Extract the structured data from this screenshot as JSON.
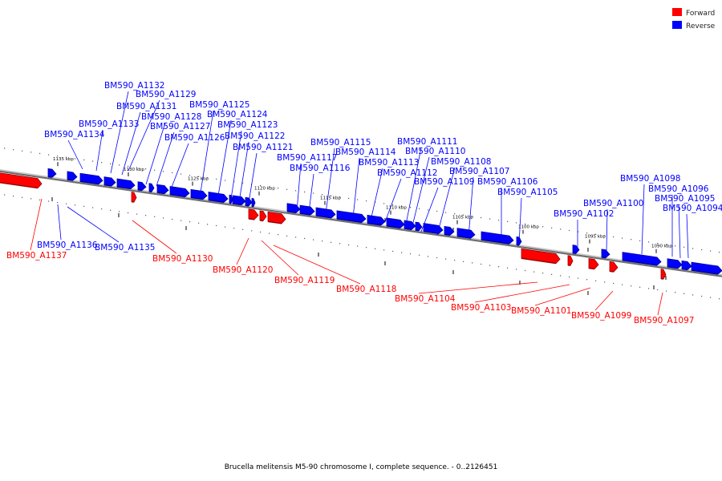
{
  "legend": [
    {
      "label": "Forward",
      "color": "#ff0000"
    },
    {
      "label": "Reverse",
      "color": "#0000ff"
    }
  ],
  "caption": "Brucella melitensis M5-90 chromosome I, complete sequence. - 0..2126451",
  "colors": {
    "forward": "#ff0000",
    "forward_dark": "#990000",
    "reverse": "#0000ff",
    "reverse_dark": "#000099",
    "track": "#888888"
  },
  "ticks": [
    {
      "label": "1135 kbp",
      "kbp": 1135
    },
    {
      "label": "1130 kbp",
      "kbp": 1130
    },
    {
      "label": "1125 kbp",
      "kbp": 1125
    },
    {
      "label": "1120 kbp",
      "kbp": 1120
    },
    {
      "label": "1115 kbp",
      "kbp": 1115
    },
    {
      "label": "1110 kbp",
      "kbp": 1110
    },
    {
      "label": "1105 kbp",
      "kbp": 1105
    },
    {
      "label": "1100 kbp",
      "kbp": 1100
    },
    {
      "label": "1095 kbp",
      "kbp": 1095
    },
    {
      "label": "1090 kbp",
      "kbp": 1090
    }
  ],
  "genes": [
    {
      "name": "BM590_A1137",
      "strand": "forward"
    },
    {
      "name": "BM590_A1136",
      "strand": "reverse"
    },
    {
      "name": "BM590_A1135",
      "strand": "reverse"
    },
    {
      "name": "BM590_A1134",
      "strand": "reverse"
    },
    {
      "name": "BM590_A1133",
      "strand": "reverse"
    },
    {
      "name": "BM590_A1132",
      "strand": "reverse"
    },
    {
      "name": "BM590_A1131",
      "strand": "reverse"
    },
    {
      "name": "BM590_A1130",
      "strand": "forward"
    },
    {
      "name": "BM590_A1129",
      "strand": "reverse"
    },
    {
      "name": "BM590_A1128",
      "strand": "reverse"
    },
    {
      "name": "BM590_A1127",
      "strand": "reverse"
    },
    {
      "name": "BM590_A1126",
      "strand": "reverse"
    },
    {
      "name": "BM590_A1125",
      "strand": "reverse"
    },
    {
      "name": "BM590_A1124",
      "strand": "reverse"
    },
    {
      "name": "BM590_A1123",
      "strand": "reverse"
    },
    {
      "name": "BM590_A1122",
      "strand": "reverse"
    },
    {
      "name": "BM590_A1121",
      "strand": "reverse"
    },
    {
      "name": "BM590_A1120",
      "strand": "forward"
    },
    {
      "name": "BM590_A1119",
      "strand": "forward"
    },
    {
      "name": "BM590_A1118",
      "strand": "forward"
    },
    {
      "name": "BM590_A1117",
      "strand": "reverse"
    },
    {
      "name": "BM590_A1116",
      "strand": "reverse"
    },
    {
      "name": "BM590_A1115",
      "strand": "reverse"
    },
    {
      "name": "BM590_A1114",
      "strand": "reverse"
    },
    {
      "name": "BM590_A1113",
      "strand": "reverse"
    },
    {
      "name": "BM590_A1112",
      "strand": "reverse"
    },
    {
      "name": "BM590_A1111",
      "strand": "reverse"
    },
    {
      "name": "BM590_A1110",
      "strand": "reverse"
    },
    {
      "name": "BM590_A1109",
      "strand": "reverse"
    },
    {
      "name": "BM590_A1108",
      "strand": "reverse"
    },
    {
      "name": "BM590_A1107",
      "strand": "reverse"
    },
    {
      "name": "BM590_A1106",
      "strand": "reverse"
    },
    {
      "name": "BM590_A1105",
      "strand": "reverse"
    },
    {
      "name": "BM590_A1104",
      "strand": "forward"
    },
    {
      "name": "BM590_A1103",
      "strand": "forward"
    },
    {
      "name": "BM590_A1102",
      "strand": "reverse"
    },
    {
      "name": "BM590_A1101",
      "strand": "forward"
    },
    {
      "name": "BM590_A1100",
      "strand": "reverse"
    },
    {
      "name": "BM590_A1099",
      "strand": "forward"
    },
    {
      "name": "BM590_A1098",
      "strand": "reverse"
    },
    {
      "name": "BM590_A1097",
      "strand": "forward"
    },
    {
      "name": "BM590_A1096",
      "strand": "reverse"
    },
    {
      "name": "BM590_A1095",
      "strand": "reverse"
    },
    {
      "name": "BM590_A1094",
      "strand": "reverse"
    }
  ]
}
